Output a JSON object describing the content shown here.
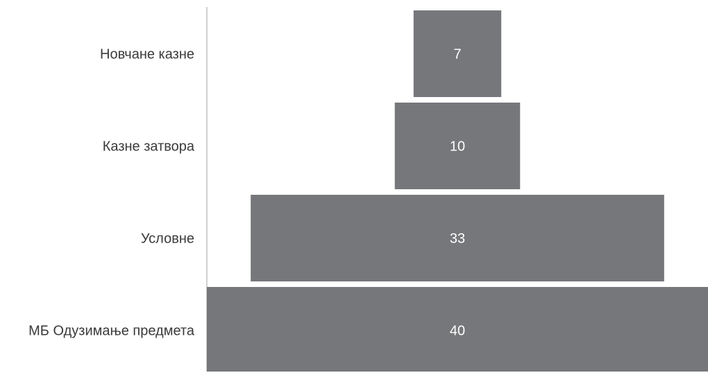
{
  "chart_data": {
    "type": "bar",
    "orientation": "horizontal",
    "style": "funnel-centered",
    "categories": [
      "Новчане казне",
      "Казне затвора",
      "Условне",
      "МБ Одузимање предмета"
    ],
    "values": [
      7,
      10,
      33,
      40
    ],
    "data_labels": [
      "7",
      "10",
      "33",
      "40"
    ],
    "title": "",
    "xlabel": "",
    "ylabel": "",
    "grid": false,
    "legend": "none",
    "colors": {
      "bar": "#76777a",
      "bar_label": "#ffffff",
      "category_label": "#3a3a3a",
      "axis": "#d0d0d0",
      "background": "#ffffff"
    }
  }
}
